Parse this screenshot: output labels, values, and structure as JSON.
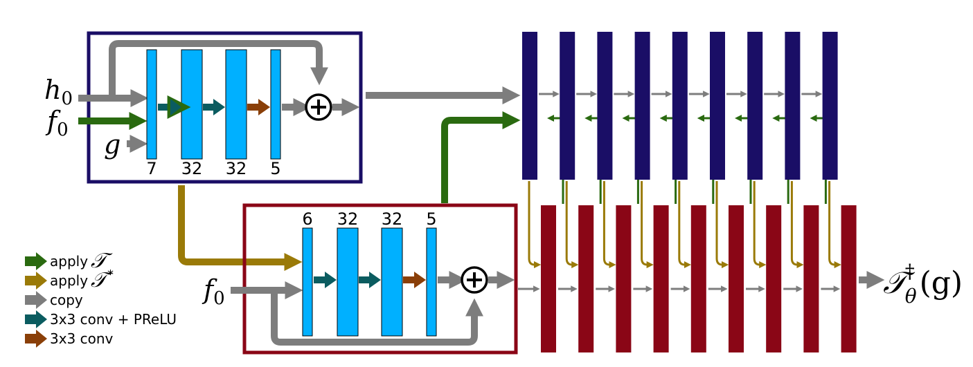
{
  "colors": {
    "apply_T": "#2a6a10",
    "apply_T_star": "#9a7a08",
    "copy": "#7d7d7d",
    "conv_prelu": "#0b5c60",
    "conv": "#8a3f08",
    "layer": "#00b0ff",
    "primal_block": "#1a0e66",
    "dual_block": "#8a0616"
  },
  "primal_module": {
    "inputs": [
      "h",
      "f",
      "g"
    ],
    "input_subscript": "0",
    "channels": [
      "7",
      "32",
      "32",
      "5"
    ],
    "sum_icon": "circled-plus-icon"
  },
  "dual_module": {
    "input": "f",
    "input_subscript": "0",
    "channels": [
      "6",
      "32",
      "32",
      "5"
    ],
    "sum_icon": "circled-plus-icon"
  },
  "iterations": 9,
  "output": {
    "symbol": "𝒯",
    "sub": "θ",
    "sup": "†",
    "arg": "(g)"
  },
  "legend": [
    {
      "color_key": "apply_T",
      "label": "apply",
      "math": "𝒯",
      "sup": ""
    },
    {
      "color_key": "apply_T_star",
      "label": "apply",
      "math": "𝒯",
      "sup": "*"
    },
    {
      "color_key": "copy",
      "label": "copy",
      "math": "",
      "sup": ""
    },
    {
      "color_key": "conv_prelu",
      "label": "3x3 conv + PReLU",
      "math": "",
      "sup": ""
    },
    {
      "color_key": "conv",
      "label": "3x3 conv",
      "math": "",
      "sup": ""
    }
  ]
}
